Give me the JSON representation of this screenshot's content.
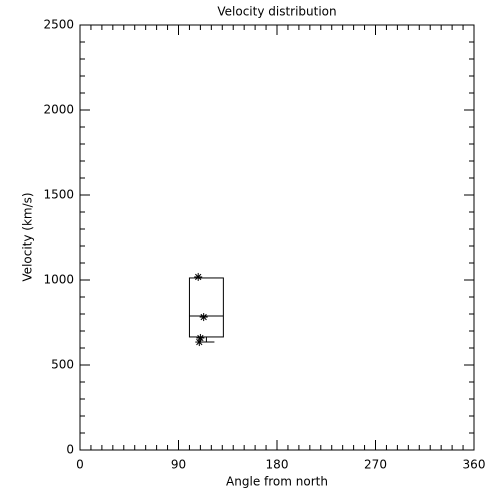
{
  "chart_data": {
    "type": "box-scatter",
    "title": "Velocity distribution",
    "x_label": "Angle from north",
    "y_label": "Velocity (km/s)",
    "xlim": [
      0,
      360
    ],
    "xticks": [
      0,
      90,
      180,
      270,
      360
    ],
    "ylim": [
      0,
      2500
    ],
    "yticks": [
      0,
      500,
      1000,
      1500,
      2000,
      2500
    ],
    "color": "#000000",
    "box": {
      "x": [
        100,
        131
      ],
      "q1": 665,
      "median": 788,
      "q3": 1012,
      "whisker_low": 635
    },
    "points": {
      "x": [
        108,
        113,
        110,
        109
      ],
      "values": [
        1018,
        782,
        659,
        635
      ]
    }
  }
}
